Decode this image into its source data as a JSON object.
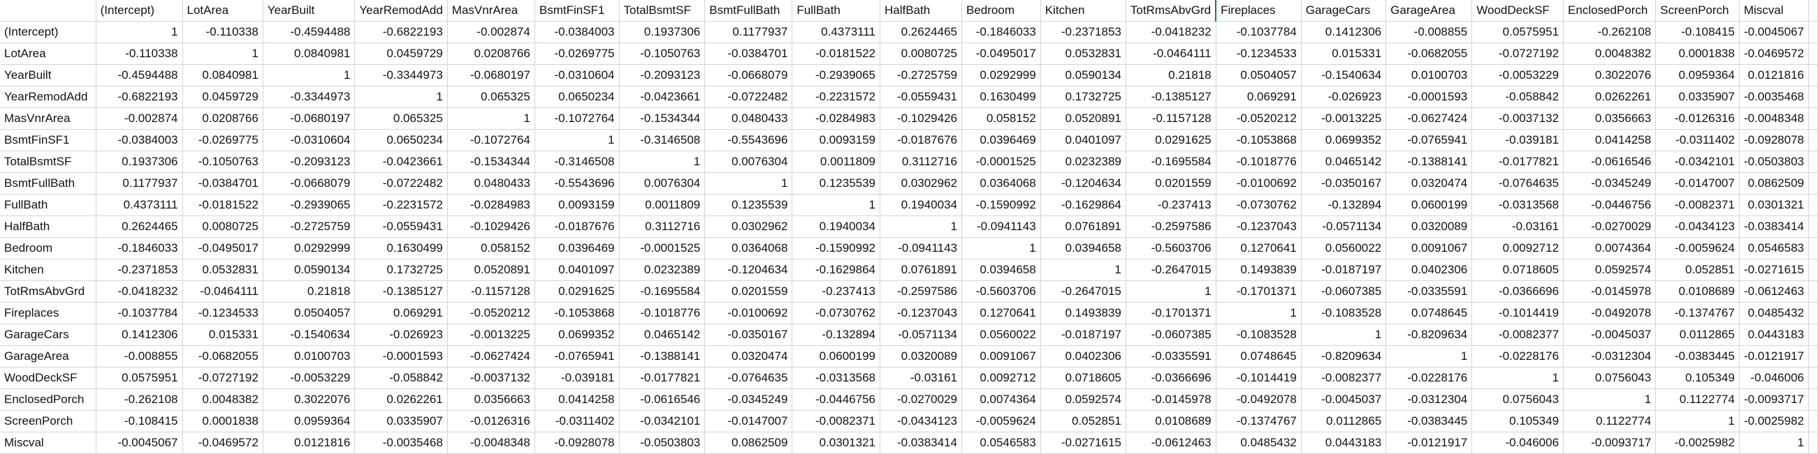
{
  "sheet": {
    "columns": [
      "(Intercept)",
      "LotArea",
      "YearBuilt",
      "YearRemodAdd",
      "MasVnrArea",
      "BsmtFinSF1",
      "TotalBsmtSF",
      "BsmtFullBath",
      "FullBath",
      "HalfBath",
      "Bedroom",
      "Kitchen",
      "TotRmsAbvGrd",
      "Fireplaces",
      "GarageCars",
      "GarageArea",
      "WoodDeckSF",
      "EnclosedPorch",
      "ScreenPorch",
      "Miscval"
    ],
    "rows": [
      {
        "label": "(Intercept)",
        "values": [
          "1",
          "-0.110338",
          "-0.4594488",
          "-0.6822193",
          "-0.002874",
          "-0.0384003",
          "0.1937306",
          "0.1177937",
          "0.4373111",
          "0.2624465",
          "-0.1846033",
          "-0.2371853",
          "-0.0418232",
          "-0.1037784",
          "0.1412306",
          "-0.008855",
          "0.0575951",
          "-0.262108",
          "-0.108415",
          "-0.0045067"
        ]
      },
      {
        "label": "LotArea",
        "values": [
          "-0.110338",
          "1",
          "0.0840981",
          "0.0459729",
          "0.0208766",
          "-0.0269775",
          "-0.1050763",
          "-0.0384701",
          "-0.0181522",
          "0.0080725",
          "-0.0495017",
          "0.0532831",
          "-0.0464111",
          "-0.1234533",
          "0.015331",
          "-0.0682055",
          "-0.0727192",
          "0.0048382",
          "0.0001838",
          "-0.0469572"
        ]
      },
      {
        "label": "YearBuilt",
        "values": [
          "-0.4594488",
          "0.0840981",
          "1",
          "-0.3344973",
          "-0.0680197",
          "-0.0310604",
          "-0.2093123",
          "-0.0668079",
          "-0.2939065",
          "-0.2725759",
          "0.0292999",
          "0.0590134",
          "0.21818",
          "0.0504057",
          "-0.1540634",
          "0.0100703",
          "-0.0053229",
          "0.3022076",
          "0.0959364",
          "0.0121816"
        ]
      },
      {
        "label": "YearRemodAdd",
        "values": [
          "-0.6822193",
          "0.0459729",
          "-0.3344973",
          "1",
          "0.065325",
          "0.0650234",
          "-0.0423661",
          "-0.0722482",
          "-0.2231572",
          "-0.0559431",
          "0.1630499",
          "0.1732725",
          "-0.1385127",
          "0.069291",
          "-0.026923",
          "-0.0001593",
          "-0.058842",
          "0.0262261",
          "0.0335907",
          "-0.0035468"
        ]
      },
      {
        "label": "MasVnrArea",
        "values": [
          "-0.002874",
          "0.0208766",
          "-0.0680197",
          "0.065325",
          "1",
          "-0.1072764",
          "-0.1534344",
          "0.0480433",
          "-0.0284983",
          "-0.1029426",
          "0.058152",
          "0.0520891",
          "-0.1157128",
          "-0.0520212",
          "-0.0013225",
          "-0.0627424",
          "-0.0037132",
          "0.0356663",
          "-0.0126316",
          "-0.0048348"
        ]
      },
      {
        "label": "BsmtFinSF1",
        "values": [
          "-0.0384003",
          "-0.0269775",
          "-0.0310604",
          "0.0650234",
          "-0.1072764",
          "1",
          "-0.3146508",
          "-0.5543696",
          "0.0093159",
          "-0.0187676",
          "0.0396469",
          "0.0401097",
          "0.0291625",
          "-0.1053868",
          "0.0699352",
          "-0.0765941",
          "-0.039181",
          "0.0414258",
          "-0.0311402",
          "-0.0928078"
        ]
      },
      {
        "label": "TotalBsmtSF",
        "values": [
          "0.1937306",
          "-0.1050763",
          "-0.2093123",
          "-0.0423661",
          "-0.1534344",
          "-0.3146508",
          "1",
          "0.0076304",
          "0.0011809",
          "0.3112716",
          "-0.0001525",
          "0.0232389",
          "-0.1695584",
          "-0.1018776",
          "0.0465142",
          "-0.1388141",
          "-0.0177821",
          "-0.0616546",
          "-0.0342101",
          "-0.0503803"
        ]
      },
      {
        "label": "BsmtFullBath",
        "values": [
          "0.1177937",
          "-0.0384701",
          "-0.0668079",
          "-0.0722482",
          "0.0480433",
          "-0.5543696",
          "0.0076304",
          "1",
          "0.1235539",
          "0.0302962",
          "0.0364068",
          "-0.1204634",
          "0.0201559",
          "-0.0100692",
          "-0.0350167",
          "0.0320474",
          "-0.0764635",
          "-0.0345249",
          "-0.0147007",
          "0.0862509"
        ]
      },
      {
        "label": "FullBath",
        "values": [
          "0.4373111",
          "-0.0181522",
          "-0.2939065",
          "-0.2231572",
          "-0.0284983",
          "0.0093159",
          "0.0011809",
          "0.1235539",
          "1",
          "0.1940034",
          "-0.1590992",
          "-0.1629864",
          "-0.237413",
          "-0.0730762",
          "-0.132894",
          "0.0600199",
          "-0.0313568",
          "-0.0446756",
          "-0.0082371",
          "0.0301321"
        ]
      },
      {
        "label": "HalfBath",
        "values": [
          "0.2624465",
          "0.0080725",
          "-0.2725759",
          "-0.0559431",
          "-0.1029426",
          "-0.0187676",
          "0.3112716",
          "0.0302962",
          "0.1940034",
          "1",
          "-0.0941143",
          "0.0761891",
          "-0.2597586",
          "-0.1237043",
          "-0.0571134",
          "0.0320089",
          "-0.03161",
          "-0.0270029",
          "-0.0434123",
          "-0.0383414"
        ]
      },
      {
        "label": "Bedroom",
        "values": [
          "-0.1846033",
          "-0.0495017",
          "0.0292999",
          "0.1630499",
          "0.058152",
          "0.0396469",
          "-0.0001525",
          "0.0364068",
          "-0.1590992",
          "-0.0941143",
          "1",
          "0.0394658",
          "-0.5603706",
          "0.1270641",
          "0.0560022",
          "0.0091067",
          "0.0092712",
          "0.0074364",
          "-0.0059624",
          "0.0546583"
        ]
      },
      {
        "label": "Kitchen",
        "values": [
          "-0.2371853",
          "0.0532831",
          "0.0590134",
          "0.1732725",
          "0.0520891",
          "0.0401097",
          "0.0232389",
          "-0.1204634",
          "-0.1629864",
          "0.0761891",
          "0.0394658",
          "1",
          "-0.2647015",
          "0.1493839",
          "-0.0187197",
          "0.0402306",
          "0.0718605",
          "0.0592574",
          "0.052851",
          "-0.0271615"
        ]
      },
      {
        "label": "TotRmsAbvGrd",
        "values": [
          "-0.0418232",
          "-0.0464111",
          "0.21818",
          "-0.1385127",
          "-0.1157128",
          "0.0291625",
          "-0.1695584",
          "0.0201559",
          "-0.237413",
          "-0.2597586",
          "-0.5603706",
          "-0.2647015",
          "1",
          "-0.1701371",
          "-0.0607385",
          "-0.0335591",
          "-0.0366696",
          "-0.0145978",
          "0.0108689",
          "-0.0612463"
        ]
      },
      {
        "label": "Fireplaces",
        "values": [
          "-0.1037784",
          "-0.1234533",
          "0.0504057",
          "0.069291",
          "-0.0520212",
          "-0.1053868",
          "-0.1018776",
          "-0.0100692",
          "-0.0730762",
          "-0.1237043",
          "0.1270641",
          "0.1493839",
          "-0.1701371",
          "1",
          "-0.1083528",
          "0.0748645",
          "-0.1014419",
          "-0.0492078",
          "-0.1374767",
          "0.0485432"
        ]
      },
      {
        "label": "GarageCars",
        "values": [
          "0.1412306",
          "0.015331",
          "-0.1540634",
          "-0.026923",
          "-0.0013225",
          "0.0699352",
          "0.0465142",
          "-0.0350167",
          "-0.132894",
          "-0.0571134",
          "0.0560022",
          "-0.0187197",
          "-0.0607385",
          "-0.1083528",
          "1",
          "-0.8209634",
          "-0.0082377",
          "-0.0045037",
          "0.0112865",
          "0.0443183"
        ]
      },
      {
        "label": "GarageArea",
        "values": [
          "-0.008855",
          "-0.0682055",
          "0.0100703",
          "-0.0001593",
          "-0.0627424",
          "-0.0765941",
          "-0.1388141",
          "0.0320474",
          "0.0600199",
          "0.0320089",
          "0.0091067",
          "0.0402306",
          "-0.0335591",
          "0.0748645",
          "-0.8209634",
          "1",
          "-0.0228176",
          "-0.0312304",
          "-0.0383445",
          "-0.0121917"
        ]
      },
      {
        "label": "WoodDeckSF",
        "values": [
          "0.0575951",
          "-0.0727192",
          "-0.0053229",
          "-0.058842",
          "-0.0037132",
          "-0.039181",
          "-0.0177821",
          "-0.0764635",
          "-0.0313568",
          "-0.03161",
          "0.0092712",
          "0.0718605",
          "-0.0366696",
          "-0.1014419",
          "-0.0082377",
          "-0.0228176",
          "1",
          "0.0756043",
          "0.105349",
          "-0.046006"
        ]
      },
      {
        "label": "EnclosedPorch",
        "values": [
          "-0.262108",
          "0.0048382",
          "0.3022076",
          "0.0262261",
          "0.0356663",
          "0.0414258",
          "-0.0616546",
          "-0.0345249",
          "-0.0446756",
          "-0.0270029",
          "0.0074364",
          "0.0592574",
          "-0.0145978",
          "-0.0492078",
          "-0.0045037",
          "-0.0312304",
          "0.0756043",
          "1",
          "0.1122774",
          "-0.0093717"
        ]
      },
      {
        "label": "ScreenPorch",
        "values": [
          "-0.108415",
          "0.0001838",
          "0.0959364",
          "0.0335907",
          "-0.0126316",
          "-0.0311402",
          "-0.0342101",
          "-0.0147007",
          "-0.0082371",
          "-0.0434123",
          "-0.0059624",
          "0.052851",
          "0.0108689",
          "-0.1374767",
          "0.0112865",
          "-0.0383445",
          "0.105349",
          "0.1122774",
          "1",
          "-0.0025982"
        ]
      },
      {
        "label": "Miscval",
        "values": [
          "-0.0045067",
          "-0.0469572",
          "0.0121816",
          "-0.0035468",
          "-0.0048348",
          "-0.0928078",
          "-0.0503803",
          "0.0862509",
          "0.0301321",
          "-0.0383414",
          "0.0546583",
          "-0.0271615",
          "-0.0612463",
          "0.0485432",
          "0.0443183",
          "-0.0121917",
          "-0.046006",
          "-0.0093717",
          "-0.0025982",
          "1"
        ]
      }
    ]
  },
  "colors": {
    "gridline": "#d4d4d4",
    "text": "#111111",
    "active_border": "#1f7a3f"
  }
}
